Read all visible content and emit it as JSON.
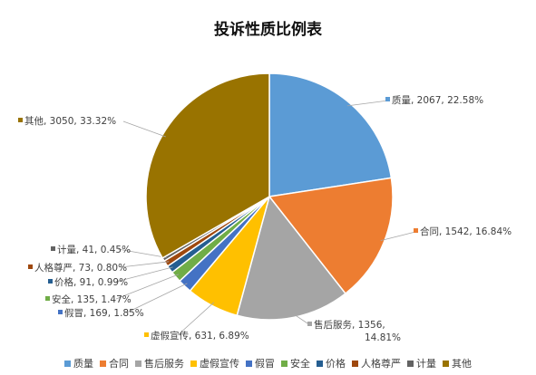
{
  "chart_data": {
    "type": "pie",
    "title": "投诉性质比例表",
    "slices": [
      {
        "name": "质量",
        "value": 2067,
        "percent": "22.58%",
        "label": "质量, 2067, 22.58%",
        "color": "#5B9BD5"
      },
      {
        "name": "合同",
        "value": 1542,
        "percent": "16.84%",
        "label": "合同, 1542, 16.84%",
        "color": "#ED7D31"
      },
      {
        "name": "售后服务",
        "value": 1356,
        "percent": "14.81%",
        "label": "售后服务, 1356,",
        "label2": "14.81%",
        "color": "#A5A5A5"
      },
      {
        "name": "虚假宣传",
        "value": 631,
        "percent": "6.89%",
        "label": "虚假宣传, 631, 6.89%",
        "color": "#FFC000"
      },
      {
        "name": "假冒",
        "value": 169,
        "percent": "1.85%",
        "label": "假冒, 169, 1.85%",
        "color": "#4472C4"
      },
      {
        "name": "安全",
        "value": 135,
        "percent": "1.47%",
        "label": "安全, 135, 1.47%",
        "color": "#70AD47"
      },
      {
        "name": "价格",
        "value": 91,
        "percent": "0.99%",
        "label": "价格, 91, 0.99%",
        "color": "#255E91"
      },
      {
        "name": "人格尊严",
        "value": 73,
        "percent": "0.80%",
        "label": "人格尊严, 73, 0.80%",
        "color": "#9E480E"
      },
      {
        "name": "计量",
        "value": 41,
        "percent": "0.45%",
        "label": "计量, 41, 0.45%",
        "color": "#636363"
      },
      {
        "name": "其他",
        "value": 3050,
        "percent": "33.32%",
        "label": "其他, 3050, 33.32%",
        "color": "#997300"
      }
    ],
    "legend_position": "bottom",
    "start_angle": "12 o'clock",
    "direction": "clockwise"
  }
}
